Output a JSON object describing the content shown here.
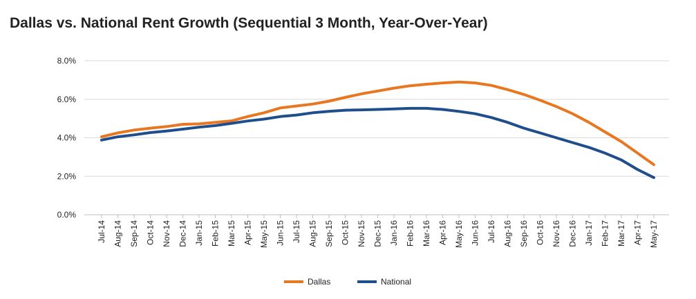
{
  "chart_data": {
    "type": "line",
    "title": "Dallas vs. National Rent Growth (Sequential 3 Month, Year-Over-Year)",
    "xlabel": "",
    "ylabel": "",
    "ylim": [
      0,
      8
    ],
    "y_ticks": [
      "0.0%",
      "2.0%",
      "4.0%",
      "6.0%",
      "8.0%"
    ],
    "y_tick_values": [
      0,
      2,
      4,
      6,
      8
    ],
    "grid": "horizontal",
    "legend_position": "bottom",
    "categories": [
      "Jul-14",
      "Aug-14",
      "Sep-14",
      "Oct-14",
      "Nov-14",
      "Dec-14",
      "Jan-15",
      "Feb-15",
      "Mar-15",
      "Apr-15",
      "May-15",
      "Jun-15",
      "Jul-15",
      "Aug-15",
      "Sep-15",
      "Oct-15",
      "Nov-15",
      "Dec-15",
      "Jan-16",
      "Feb-16",
      "Mar-16",
      "Apr-16",
      "May-16",
      "Jun-16",
      "Jul-16",
      "Aug-16",
      "Sep-16",
      "Oct-16",
      "Nov-16",
      "Dec-16",
      "Jan-17",
      "Feb-17",
      "Mar-17",
      "Apr-17",
      "May-17"
    ],
    "series": [
      {
        "name": "Dallas",
        "color": "#E87722",
        "values": [
          4.05,
          4.25,
          4.4,
          4.5,
          4.58,
          4.7,
          4.72,
          4.8,
          4.88,
          5.1,
          5.3,
          5.55,
          5.65,
          5.75,
          5.9,
          6.1,
          6.28,
          6.43,
          6.58,
          6.7,
          6.78,
          6.85,
          6.9,
          6.85,
          6.72,
          6.5,
          6.25,
          5.95,
          5.62,
          5.25,
          4.8,
          4.3,
          3.8,
          3.2,
          2.6
        ]
      },
      {
        "name": "National",
        "color": "#1F4E8C",
        "values": [
          3.88,
          4.05,
          4.15,
          4.27,
          4.35,
          4.45,
          4.55,
          4.63,
          4.75,
          4.87,
          4.97,
          5.1,
          5.18,
          5.3,
          5.37,
          5.43,
          5.45,
          5.47,
          5.5,
          5.53,
          5.53,
          5.47,
          5.37,
          5.25,
          5.05,
          4.8,
          4.5,
          4.25,
          4.0,
          3.75,
          3.5,
          3.2,
          2.85,
          2.35,
          1.93
        ]
      }
    ]
  }
}
